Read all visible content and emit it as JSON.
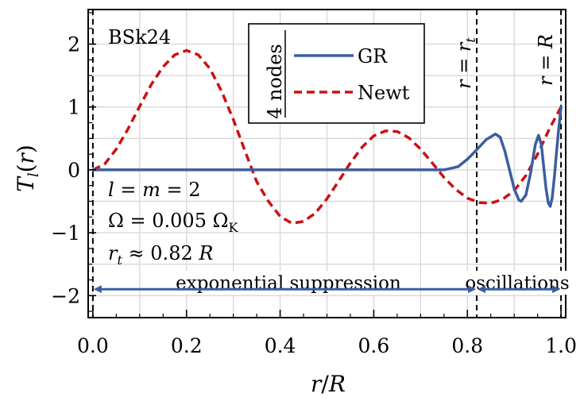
{
  "chart_data": {
    "type": "line",
    "title": "",
    "xlabel": "r/R",
    "ylabel": "T_l(r)",
    "xlim": [
      -0.01,
      1.01
    ],
    "ylim": [
      -2.35,
      2.55
    ],
    "x_ticks": [
      {
        "value": 0.0,
        "label": "0.0"
      },
      {
        "value": 0.2,
        "label": "0.2"
      },
      {
        "value": 0.4,
        "label": "0.4"
      },
      {
        "value": 0.6,
        "label": "0.6"
      },
      {
        "value": 0.8,
        "label": "0.8"
      },
      {
        "value": 1.0,
        "label": "1.0"
      }
    ],
    "y_ticks": [
      {
        "value": -2,
        "label": "−2"
      },
      {
        "value": -1,
        "label": "−1"
      },
      {
        "value": 0,
        "label": "0"
      },
      {
        "value": 1,
        "label": "1"
      },
      {
        "value": 2,
        "label": "2"
      }
    ],
    "grid": true,
    "legend": {
      "title": "4 nodes",
      "position": "top-center"
    },
    "series": [
      {
        "name": "GR",
        "color": "#3c5ea0",
        "style": "solid",
        "points": [
          [
            0.0,
            0.0
          ],
          [
            0.1,
            0.0
          ],
          [
            0.2,
            0.0
          ],
          [
            0.3,
            0.0
          ],
          [
            0.4,
            0.0
          ],
          [
            0.5,
            0.0
          ],
          [
            0.6,
            0.0
          ],
          [
            0.7,
            0.0
          ],
          [
            0.75,
            0.0
          ],
          [
            0.78,
            0.05
          ],
          [
            0.8,
            0.17
          ],
          [
            0.82,
            0.32
          ],
          [
            0.84,
            0.48
          ],
          [
            0.86,
            0.57
          ],
          [
            0.87,
            0.52
          ],
          [
            0.88,
            0.3
          ],
          [
            0.89,
            0.0
          ],
          [
            0.9,
            -0.3
          ],
          [
            0.91,
            -0.48
          ],
          [
            0.915,
            -0.5
          ],
          [
            0.925,
            -0.4
          ],
          [
            0.935,
            -0.05
          ],
          [
            0.945,
            0.4
          ],
          [
            0.952,
            0.55
          ],
          [
            0.958,
            0.4
          ],
          [
            0.963,
            0.05
          ],
          [
            0.968,
            -0.3
          ],
          [
            0.973,
            -0.53
          ],
          [
            0.977,
            -0.58
          ],
          [
            0.981,
            -0.45
          ],
          [
            0.986,
            -0.1
          ],
          [
            0.99,
            0.25
          ],
          [
            0.995,
            0.65
          ],
          [
            1.0,
            1.0
          ]
        ]
      },
      {
        "name": "Newt",
        "color": "#cc1111",
        "style": "dashed",
        "points": [
          [
            0.0,
            0.0
          ],
          [
            0.025,
            0.09
          ],
          [
            0.05,
            0.33
          ],
          [
            0.075,
            0.65
          ],
          [
            0.1,
            1.01
          ],
          [
            0.125,
            1.36
          ],
          [
            0.15,
            1.64
          ],
          [
            0.175,
            1.83
          ],
          [
            0.2,
            1.9
          ],
          [
            0.225,
            1.83
          ],
          [
            0.25,
            1.61
          ],
          [
            0.275,
            1.25
          ],
          [
            0.3,
            0.8
          ],
          [
            0.325,
            0.3
          ],
          [
            0.35,
            -0.19
          ],
          [
            0.375,
            -0.5
          ],
          [
            0.4,
            -0.74
          ],
          [
            0.425,
            -0.85
          ],
          [
            0.45,
            -0.82
          ],
          [
            0.475,
            -0.69
          ],
          [
            0.5,
            -0.46
          ],
          [
            0.525,
            -0.18
          ],
          [
            0.55,
            0.11
          ],
          [
            0.575,
            0.36
          ],
          [
            0.6,
            0.54
          ],
          [
            0.625,
            0.62
          ],
          [
            0.65,
            0.61
          ],
          [
            0.675,
            0.51
          ],
          [
            0.7,
            0.33
          ],
          [
            0.725,
            0.11
          ],
          [
            0.75,
            -0.12
          ],
          [
            0.775,
            -0.31
          ],
          [
            0.8,
            -0.45
          ],
          [
            0.825,
            -0.52
          ],
          [
            0.85,
            -0.53
          ],
          [
            0.875,
            -0.47
          ],
          [
            0.9,
            -0.33
          ],
          [
            0.925,
            -0.09
          ],
          [
            0.95,
            0.25
          ],
          [
            0.975,
            0.65
          ],
          [
            1.0,
            1.0
          ]
        ]
      }
    ],
    "vertical_lines": [
      {
        "x": 0.0,
        "style": "dashed",
        "label": ""
      },
      {
        "x": 0.82,
        "style": "dashed",
        "label": "r = r_t"
      },
      {
        "x": 1.0,
        "style": "dashed",
        "label": "r = R"
      }
    ],
    "annotations": {
      "model": "BSk24",
      "params": [
        "l = m = 2",
        "Ω = 0.005 Ω_K",
        "r_t ≈ 0.82 R"
      ],
      "exponential": "exponential suppression",
      "oscillations": "oscillations"
    },
    "arrows": [
      {
        "from": 0.0,
        "to": 0.82,
        "y": -2.1,
        "color": "#3c5ea0"
      },
      {
        "from": 0.82,
        "to": 1.0,
        "y": -2.1,
        "color": "#3c5ea0"
      }
    ]
  }
}
